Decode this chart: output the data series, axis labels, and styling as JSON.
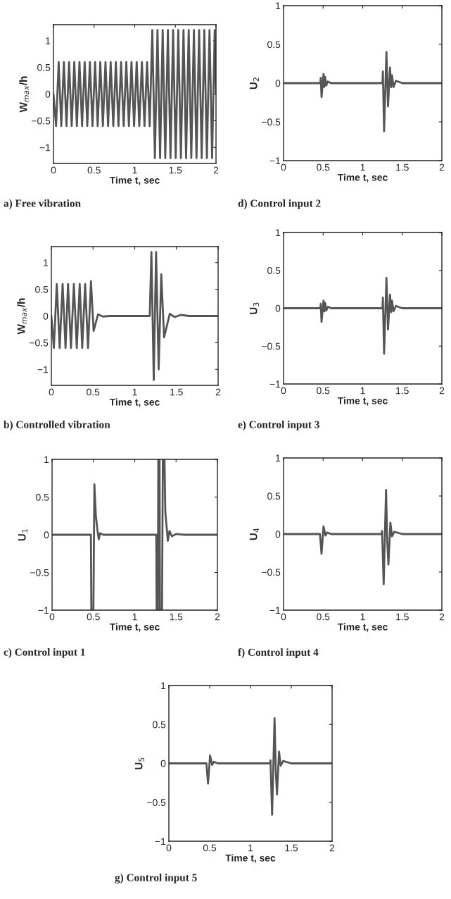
{
  "chart_data": [
    {
      "type": "line",
      "title": "a) Free vibration",
      "xlabel": "Time t, sec",
      "ylabel": "W$_{max}$/h",
      "xlim": [
        0,
        2
      ],
      "ylim": [
        -1.3,
        1.3
      ],
      "xticks": [
        0,
        0.5,
        1,
        1.5,
        2
      ],
      "yticks": [
        -1,
        -0.5,
        0,
        0.5,
        1
      ],
      "x": [
        0,
        0.032,
        0.064,
        0.096,
        0.128,
        0.16,
        0.192,
        0.224,
        0.256,
        0.288,
        0.32,
        0.352,
        0.384,
        0.416,
        0.448,
        0.48,
        0.512,
        0.544,
        0.576,
        0.608,
        0.64,
        0.672,
        0.704,
        0.736,
        0.768,
        0.8,
        0.832,
        0.864,
        0.896,
        0.928,
        0.96,
        0.992,
        1.024,
        1.056,
        1.088,
        1.12,
        1.152,
        1.184,
        1.216,
        1.248,
        1.28,
        1.312,
        1.344,
        1.376,
        1.408,
        1.44,
        1.472,
        1.504,
        1.536,
        1.568,
        1.6,
        1.632,
        1.664,
        1.696,
        1.728,
        1.76,
        1.792,
        1.824,
        1.856,
        1.888,
        1.92,
        1.952,
        1.984,
        2.0
      ],
      "series": [
        {
          "color": "#555555",
          "values": [
            0,
            -0.6,
            0.6,
            -0.6,
            0.6,
            -0.6,
            0.6,
            -0.6,
            0.6,
            -0.6,
            0.6,
            -0.6,
            0.6,
            -0.6,
            0.6,
            -0.6,
            0.6,
            -0.6,
            0.6,
            -0.6,
            0.6,
            -0.6,
            0.6,
            -0.6,
            0.6,
            -0.6,
            0.6,
            -0.6,
            0.6,
            -0.6,
            0.6,
            -0.6,
            0.6,
            -0.6,
            0.6,
            -0.6,
            0.6,
            -0.6,
            1.2,
            -1.2,
            1.2,
            -1.2,
            1.2,
            -1.2,
            1.2,
            -1.2,
            1.2,
            -1.2,
            1.2,
            -1.2,
            1.2,
            -1.2,
            1.2,
            -1.2,
            1.2,
            -1.2,
            1.2,
            -1.2,
            1.2,
            -1.2,
            1.2,
            -1.2,
            1.2,
            0
          ]
        }
      ]
    },
    {
      "type": "line",
      "title": "b) Controlled vibration",
      "xlabel": "Time t, sec",
      "ylabel": "W$_{max}$/h",
      "xlim": [
        0,
        2
      ],
      "ylim": [
        -1.3,
        1.3
      ],
      "xticks": [
        0,
        0.5,
        1,
        1.5,
        2
      ],
      "yticks": [
        -1,
        -0.5,
        0,
        0.5,
        1
      ],
      "x": [
        0,
        0.03,
        0.065,
        0.1,
        0.135,
        0.17,
        0.2,
        0.235,
        0.27,
        0.305,
        0.34,
        0.37,
        0.405,
        0.44,
        0.475,
        0.507,
        0.56,
        0.62,
        0.7,
        1.18,
        1.2,
        1.228,
        1.256,
        1.287,
        1.318,
        1.352,
        1.42,
        1.48,
        1.55,
        1.65,
        2.0
      ],
      "series": [
        {
          "color": "#555555",
          "values": [
            0,
            -0.6,
            0.6,
            -0.6,
            0.6,
            -0.6,
            0.6,
            -0.6,
            0.6,
            -0.6,
            0.6,
            -0.6,
            0.6,
            -0.6,
            0.65,
            -0.28,
            0.03,
            -0.01,
            0,
            0,
            1.2,
            -1.2,
            1.2,
            -1.0,
            0.78,
            -0.4,
            0.04,
            -0.02,
            0.02,
            0,
            0
          ]
        }
      ]
    },
    {
      "type": "line",
      "title": "c) Control input 1",
      "xlabel": "Time t, sec",
      "ylabel": "U$_{1}$",
      "xlim": [
        0,
        2
      ],
      "ylim": [
        -1,
        1
      ],
      "xticks": [
        0,
        0.5,
        1,
        1.5,
        2
      ],
      "yticks": [
        -1,
        -0.5,
        0,
        0.5,
        1
      ],
      "x": [
        0,
        0.47,
        0.475,
        0.5,
        0.512,
        0.53,
        0.55,
        0.565,
        0.58,
        0.62,
        1.26,
        1.265,
        1.28,
        1.285,
        1.3,
        1.305,
        1.33,
        1.34,
        1.36,
        1.37,
        1.39,
        1.4,
        1.42,
        1.45,
        1.5,
        1.6,
        2.0
      ],
      "series": [
        {
          "color": "#555555",
          "values": [
            0,
            0,
            -1,
            -1,
            0.67,
            0.25,
            0.05,
            -0.06,
            0.02,
            0,
            0,
            -1,
            -1,
            1,
            1,
            -1,
            -1,
            1,
            1,
            0.3,
            0.05,
            -0.08,
            0.05,
            -0.02,
            0.01,
            0,
            0
          ]
        }
      ]
    },
    {
      "type": "line",
      "title": "d) Control input 2",
      "xlabel": "Time t, sec",
      "ylabel": "U$_{2}$",
      "xlim": [
        0,
        2
      ],
      "ylim": [
        -1,
        1
      ],
      "xticks": [
        0,
        0.5,
        1,
        1.5,
        2
      ],
      "yticks": [
        -1,
        -0.5,
        0,
        0.5,
        1
      ],
      "x": [
        0,
        0.465,
        0.47,
        0.48,
        0.505,
        0.515,
        0.525,
        0.54,
        0.56,
        0.6,
        1.25,
        1.255,
        1.27,
        1.3,
        1.32,
        1.345,
        1.36,
        1.37,
        1.39,
        1.42,
        1.5,
        2.0
      ],
      "series": [
        {
          "color": "#555555",
          "values": [
            0,
            0,
            0.07,
            -0.18,
            0.12,
            -0.05,
            0.08,
            -0.03,
            0.02,
            0,
            0,
            0.15,
            -0.62,
            0.4,
            -0.3,
            0.2,
            -0.05,
            0.1,
            -0.05,
            0.03,
            0,
            0
          ]
        }
      ]
    },
    {
      "type": "line",
      "title": "e) Control input 3",
      "xlabel": "Time t, sec",
      "ylabel": "U$_{3}$",
      "xlim": [
        0,
        2
      ],
      "ylim": [
        -1,
        1
      ],
      "xticks": [
        0,
        0.5,
        1,
        1.5,
        2
      ],
      "yticks": [
        -1,
        -0.5,
        0,
        0.5,
        1
      ],
      "x": [
        0,
        0.465,
        0.47,
        0.48,
        0.505,
        0.515,
        0.525,
        0.54,
        0.56,
        0.6,
        1.25,
        1.255,
        1.27,
        1.3,
        1.32,
        1.345,
        1.36,
        1.37,
        1.39,
        1.42,
        1.5,
        2.0
      ],
      "series": [
        {
          "color": "#555555",
          "values": [
            0,
            0,
            0.06,
            -0.18,
            0.1,
            -0.04,
            0.07,
            -0.03,
            0.02,
            0,
            0,
            0.14,
            -0.6,
            0.4,
            -0.28,
            0.18,
            -0.05,
            0.1,
            -0.04,
            0.03,
            0,
            0
          ]
        }
      ]
    },
    {
      "type": "line",
      "title": "f) Control input 4",
      "xlabel": "Time t, sec",
      "ylabel": "U$_{4}$",
      "xlim": [
        0,
        2
      ],
      "ylim": [
        -1,
        1
      ],
      "xticks": [
        0,
        0.5,
        1,
        1.5,
        2
      ],
      "yticks": [
        -1,
        -0.5,
        0,
        0.5,
        1
      ],
      "x": [
        0,
        0.46,
        0.48,
        0.505,
        0.53,
        0.55,
        0.6,
        1.24,
        1.245,
        1.265,
        1.295,
        1.31,
        1.325,
        1.35,
        1.37,
        1.4,
        1.5,
        2.0
      ],
      "series": [
        {
          "color": "#555555",
          "values": [
            0,
            0,
            -0.26,
            0.1,
            -0.02,
            0.02,
            0,
            0,
            0.04,
            -0.66,
            0.58,
            -0.1,
            -0.4,
            0.15,
            -0.03,
            0.03,
            0,
            0
          ]
        }
      ]
    },
    {
      "type": "line",
      "title": "g) Control input 5",
      "xlabel": "Time t, sec",
      "ylabel": "U$_{5}$",
      "xlim": [
        0,
        2
      ],
      "ylim": [
        -1,
        1
      ],
      "xticks": [
        0,
        0.5,
        1,
        1.5,
        2
      ],
      "yticks": [
        -1,
        -0.5,
        0,
        0.5,
        1
      ],
      "x": [
        0,
        0.46,
        0.48,
        0.505,
        0.53,
        0.55,
        0.6,
        1.24,
        1.245,
        1.265,
        1.295,
        1.31,
        1.325,
        1.35,
        1.37,
        1.4,
        1.5,
        2.0
      ],
      "series": [
        {
          "color": "#555555",
          "values": [
            0,
            0,
            -0.26,
            0.1,
            -0.02,
            0.02,
            0,
            0,
            0.04,
            -0.66,
            0.58,
            -0.1,
            -0.4,
            0.15,
            -0.03,
            0.03,
            0,
            0
          ]
        }
      ]
    }
  ]
}
